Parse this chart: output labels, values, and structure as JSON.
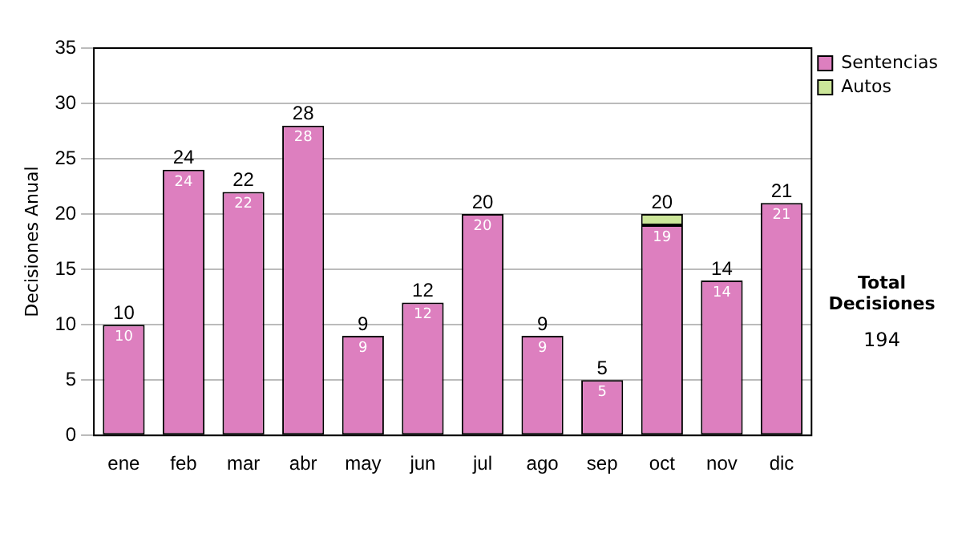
{
  "chart_data": {
    "type": "bar",
    "stacked": true,
    "ylabel": "Decisiones Anual",
    "categories": [
      "ene",
      "feb",
      "mar",
      "abr",
      "may",
      "jun",
      "jul",
      "ago",
      "sep",
      "oct",
      "nov",
      "dic"
    ],
    "series": [
      {
        "name": "Sentencias",
        "color": "#dd7fbf",
        "values": [
          10,
          24,
          22,
          28,
          9,
          12,
          20,
          9,
          5,
          19,
          14,
          21
        ],
        "value_labels": [
          "10",
          "24",
          "22",
          "28",
          "9",
          "12",
          "20",
          "9",
          "5",
          "19",
          "14",
          "21"
        ]
      },
      {
        "name": "Autos",
        "color": "#cce699",
        "values": [
          null,
          null,
          null,
          null,
          null,
          null,
          null,
          null,
          null,
          1,
          null,
          null
        ]
      }
    ],
    "totals": [
      "10",
      "24",
      "22",
      "28",
      "9",
      "12",
      "20",
      "9",
      "5",
      "20",
      "14",
      "21"
    ],
    "ylim": [
      0,
      35
    ],
    "yticks": [
      0,
      5,
      10,
      15,
      20,
      25,
      30,
      35
    ],
    "grid": "y",
    "legend": "right",
    "annotations": [
      "Total Decisiones",
      "194"
    ]
  }
}
